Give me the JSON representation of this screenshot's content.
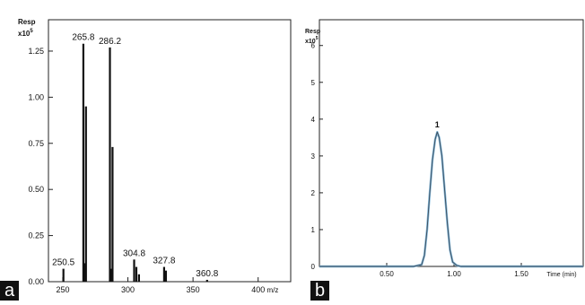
{
  "chart_data": [
    {
      "type": "bar",
      "panel": "a",
      "ylabel": "Resp",
      "yscale": "x10^5",
      "ylabel_scale_base": "x10",
      "ylabel_scale_exp": "5",
      "xlabel": "m/z",
      "xlim": [
        239,
        425
      ],
      "ylim": [
        0,
        1.42
      ],
      "xticks": [
        250,
        300,
        350,
        400
      ],
      "yticks": [
        0.0,
        0.25,
        0.5,
        0.75,
        1.0,
        1.25
      ],
      "ytick_labels": [
        "0.00",
        "0.25",
        "0.50",
        "0.75",
        "1.00",
        "1.25"
      ],
      "peaks": [
        {
          "x": 250.5,
          "y": 0.07
        },
        {
          "x": 265.8,
          "y": 1.29
        },
        {
          "x": 266.5,
          "y": 0.1
        },
        {
          "x": 267.8,
          "y": 0.95
        },
        {
          "x": 286.2,
          "y": 1.27
        },
        {
          "x": 287.0,
          "y": 0.07
        },
        {
          "x": 288.2,
          "y": 0.73
        },
        {
          "x": 304.8,
          "y": 0.12
        },
        {
          "x": 306.5,
          "y": 0.08
        },
        {
          "x": 308.5,
          "y": 0.04
        },
        {
          "x": 327.8,
          "y": 0.08
        },
        {
          "x": 329.2,
          "y": 0.06
        },
        {
          "x": 360.8,
          "y": 0.01
        }
      ],
      "peak_labels": [
        {
          "x": 250.5,
          "y": 0.07,
          "text": "250.5"
        },
        {
          "x": 265.8,
          "y": 1.29,
          "text": "265.8"
        },
        {
          "x": 286.2,
          "y": 1.27,
          "text": "286.2"
        },
        {
          "x": 304.8,
          "y": 0.12,
          "text": "304.8"
        },
        {
          "x": 327.8,
          "y": 0.08,
          "text": "327.8"
        },
        {
          "x": 360.8,
          "y": 0.01,
          "text": "360.8"
        }
      ],
      "panel_label": "a"
    },
    {
      "type": "line",
      "panel": "b",
      "ylabel": "Resp",
      "yscale": "x10^5",
      "ylabel_scale_base": "x10",
      "ylabel_scale_exp": "5",
      "xlabel": "Time (min)",
      "xlim": [
        0.0,
        1.96
      ],
      "ylim": [
        0,
        6.7
      ],
      "xticks": [
        0.5,
        1.0,
        1.5
      ],
      "xtick_labels": [
        "0.50",
        "1.00",
        "1.50"
      ],
      "yticks": [
        0,
        1,
        2,
        3,
        4,
        5,
        6
      ],
      "ytick_labels": [
        "0",
        "1",
        "2",
        "3",
        "4",
        "5",
        "6"
      ],
      "x": [
        0.0,
        0.7,
        0.76,
        0.78,
        0.8,
        0.82,
        0.84,
        0.86,
        0.875,
        0.89,
        0.91,
        0.93,
        0.95,
        0.97,
        0.99,
        1.02,
        1.05,
        1.1,
        1.96
      ],
      "y": [
        0.0,
        0.0,
        0.05,
        0.3,
        1.0,
        2.0,
        2.9,
        3.45,
        3.65,
        3.5,
        3.0,
        2.1,
        1.2,
        0.45,
        0.12,
        0.03,
        0.0,
        0.0,
        0.0
      ],
      "peak_labels": [
        {
          "x": 0.875,
          "y": 3.65,
          "text": "1"
        }
      ],
      "panel_label": "b"
    }
  ]
}
